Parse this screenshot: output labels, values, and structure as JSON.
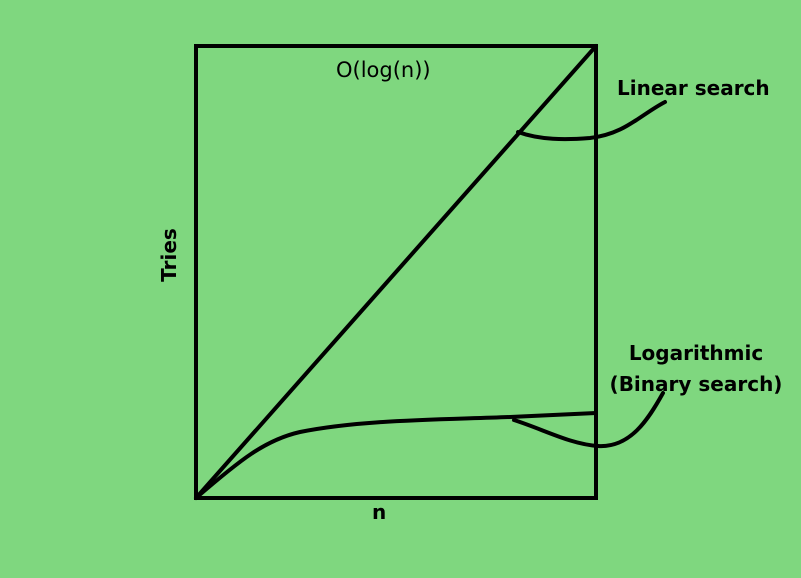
{
  "chart_data": {
    "type": "line",
    "title": "O(log(n))",
    "xlabel": "n",
    "ylabel": "Tries",
    "series": [
      {
        "name": "Linear search",
        "curve": "linear"
      },
      {
        "name": "Logarithmic (Binary search)",
        "curve": "logarithmic"
      }
    ]
  },
  "annotations": {
    "linear": "Linear search",
    "log_line1": "Logarithmic",
    "log_line2": "(Binary search)"
  },
  "colors": {
    "background": "#7fd77f",
    "stroke": "#000000"
  }
}
